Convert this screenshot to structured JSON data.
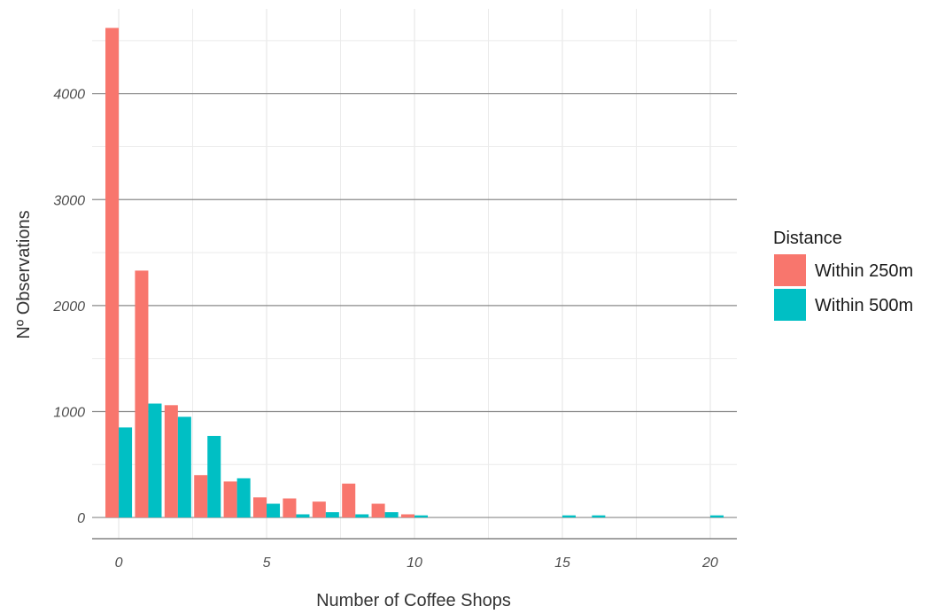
{
  "chart_data": {
    "type": "bar",
    "xlabel": "Number of Coffee Shops",
    "ylabel": "Nº Observations",
    "xlim": [
      -0.9,
      20.9
    ],
    "ylim": [
      -200,
      4800
    ],
    "x_ticks": [
      0,
      5,
      10,
      15,
      20
    ],
    "y_ticks": [
      0,
      1000,
      2000,
      3000,
      4000
    ],
    "grid": true,
    "legend": {
      "title": "Distance",
      "position": "right"
    },
    "series": [
      {
        "name": "Within 250m",
        "color": "#F8766D",
        "x": [
          0,
          1,
          2,
          3,
          4,
          5,
          6,
          7,
          8,
          9,
          10
        ],
        "values": [
          4620,
          2330,
          1060,
          400,
          340,
          190,
          180,
          150,
          320,
          130,
          30
        ]
      },
      {
        "name": "Within 500m",
        "color": "#00BFC4",
        "x": [
          0,
          1,
          2,
          3,
          4,
          5,
          6,
          7,
          8,
          9,
          10,
          15,
          16,
          20
        ],
        "values": [
          850,
          1075,
          950,
          770,
          370,
          130,
          30,
          50,
          30,
          50,
          20,
          20,
          20,
          20
        ]
      }
    ]
  }
}
